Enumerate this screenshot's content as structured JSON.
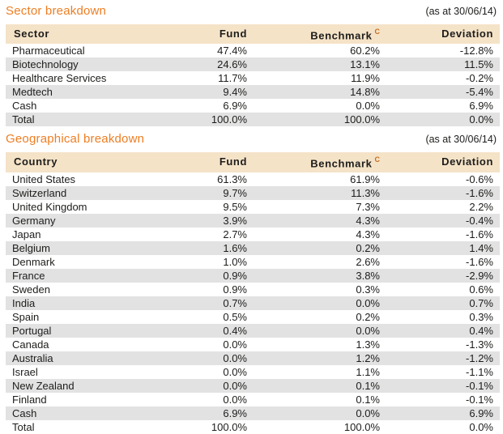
{
  "colors": {
    "accent_orange": "#ee7e23",
    "footnote_orange": "#c96d1e",
    "header_row_bg": "#f5e3c8",
    "alt_row_bg": "#e2e2e2",
    "text": "#1d1d1b"
  },
  "sector_table": {
    "title": "Sector breakdown",
    "date": "(as at 30/06/14)",
    "columns": [
      "Sector",
      "Fund",
      "Benchmark",
      "Deviation"
    ],
    "benchmark_footnote_marker": "C",
    "rows": [
      [
        "Pharmaceutical",
        "47.4%",
        "60.2%",
        "-12.8%"
      ],
      [
        "Biotechnology",
        "24.6%",
        "13.1%",
        "11.5%"
      ],
      [
        "Healthcare Services",
        "11.7%",
        "11.9%",
        "-0.2%"
      ],
      [
        "Medtech",
        "9.4%",
        "14.8%",
        "-5.4%"
      ],
      [
        "Cash",
        "6.9%",
        "0.0%",
        "6.9%"
      ],
      [
        "Total",
        "100.0%",
        "100.0%",
        "0.0%"
      ]
    ]
  },
  "geo_table": {
    "title": "Geographical breakdown",
    "date": "(as at 30/06/14)",
    "columns": [
      "Country",
      "Fund",
      "Benchmark",
      "Deviation"
    ],
    "benchmark_footnote_marker": "C",
    "rows": [
      [
        "United States",
        "61.3%",
        "61.9%",
        "-0.6%"
      ],
      [
        "Switzerland",
        "9.7%",
        "11.3%",
        "-1.6%"
      ],
      [
        "United Kingdom",
        "9.5%",
        "7.3%",
        "2.2%"
      ],
      [
        "Germany",
        "3.9%",
        "4.3%",
        "-0.4%"
      ],
      [
        "Japan",
        "2.7%",
        "4.3%",
        "-1.6%"
      ],
      [
        "Belgium",
        "1.6%",
        "0.2%",
        "1.4%"
      ],
      [
        "Denmark",
        "1.0%",
        "2.6%",
        "-1.6%"
      ],
      [
        "France",
        "0.9%",
        "3.8%",
        "-2.9%"
      ],
      [
        "Sweden",
        "0.9%",
        "0.3%",
        "0.6%"
      ],
      [
        "India",
        "0.7%",
        "0.0%",
        "0.7%"
      ],
      [
        "Spain",
        "0.5%",
        "0.2%",
        "0.3%"
      ],
      [
        "Portugal",
        "0.4%",
        "0.0%",
        "0.4%"
      ],
      [
        "Canada",
        "0.0%",
        "1.3%",
        "-1.3%"
      ],
      [
        "Australia",
        "0.0%",
        "1.2%",
        "-1.2%"
      ],
      [
        "Israel",
        "0.0%",
        "1.1%",
        "-1.1%"
      ],
      [
        "New Zealand",
        "0.0%",
        "0.1%",
        "-0.1%"
      ],
      [
        "Finland",
        "0.0%",
        "0.1%",
        "-0.1%"
      ],
      [
        "Cash",
        "6.9%",
        "0.0%",
        "6.9%"
      ],
      [
        "Total",
        "100.0%",
        "100.0%",
        "0.0%"
      ]
    ]
  }
}
